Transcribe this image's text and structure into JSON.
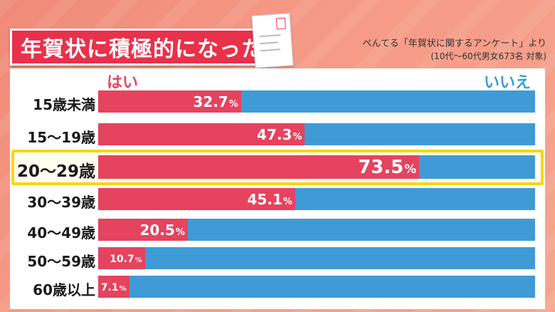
{
  "title": "年賀状に積極的になった",
  "source": {
    "line1": "ぺんてる「年賀状に関するアンケート」より",
    "line2": "(10代〜60代男女673名 対象)"
  },
  "colors": {
    "yes": "#e5435e",
    "no": "#3f9bd6",
    "highlight": "#f8d513",
    "title_bg": "#e8314a"
  },
  "chart_data": {
    "type": "bar",
    "orientation": "horizontal-stacked-100",
    "legend": {
      "yes": "はい",
      "no": "いいえ"
    },
    "unit": "%",
    "highlight_category": "20〜29歳",
    "categories": [
      "15歳未満",
      "15〜19歳",
      "20〜29歳",
      "30〜39歳",
      "40〜49歳",
      "50〜59歳",
      "60歳以上"
    ],
    "series": [
      {
        "name": "はい",
        "values": [
          32.7,
          47.3,
          73.5,
          45.1,
          20.5,
          10.7,
          7.1
        ]
      },
      {
        "name": "いいえ",
        "values": [
          67.3,
          52.7,
          26.5,
          54.9,
          79.5,
          89.3,
          92.9
        ]
      }
    ],
    "value_labels": [
      "32.7",
      "47.3",
      "73.5",
      "45.1",
      "20.5",
      "10.7",
      "7.1"
    ],
    "xlim": [
      0,
      100
    ]
  }
}
